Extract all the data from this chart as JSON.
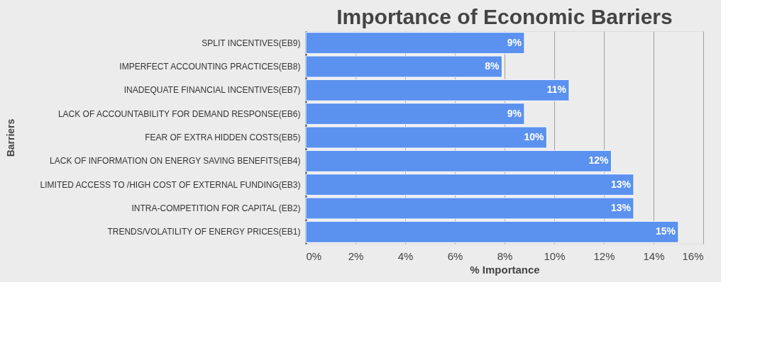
{
  "chart_data": {
    "type": "bar",
    "orientation": "horizontal",
    "title": "Importance of Economic Barriers",
    "xlabel": "% Importance",
    "ylabel": "Barriers",
    "categories": [
      "SPLIT INCENTIVES(EB9)",
      "IMPERFECT ACCOUNTING PRACTICES(EB8)",
      "INADEQUATE FINANCIAL INCENTIVES(EB7)",
      "LACK OF ACCOUNTABILITY FOR DEMAND RESPONSE(EB6)",
      "FEAR OF EXTRA HIDDEN COSTS(EB5)",
      "LACK OF INFORMATION ON ENERGY SAVING BENEFITS(EB4)",
      "LIMITED ACCESS TO /HIGH COST OF EXTERNAL FUNDING(EB3)",
      "INTRA-COMPETITION FOR CAPITAL (EB2)",
      "TRENDS/VOLATILITY OF ENERGY PRICES(EB1)"
    ],
    "values": [
      8.8,
      7.9,
      10.6,
      8.8,
      9.7,
      12.3,
      13.2,
      13.2,
      15.0
    ],
    "value_labels": [
      "9%",
      "8%",
      "11%",
      "9%",
      "10%",
      "12%",
      "13%",
      "13%",
      "15%"
    ],
    "color": "#5b91ef",
    "xlim": [
      0,
      16
    ],
    "xticks": [
      {
        "value": 0,
        "label": "0%"
      },
      {
        "value": 2,
        "label": "2%"
      },
      {
        "value": 4,
        "label": "4%"
      },
      {
        "value": 6,
        "label": "6%"
      },
      {
        "value": 8,
        "label": "8%"
      },
      {
        "value": 10,
        "label": "10%"
      },
      {
        "value": 12,
        "label": "12%"
      },
      {
        "value": 14,
        "label": "14%"
      },
      {
        "value": 16,
        "label": "16%"
      }
    ],
    "grid": "x"
  }
}
